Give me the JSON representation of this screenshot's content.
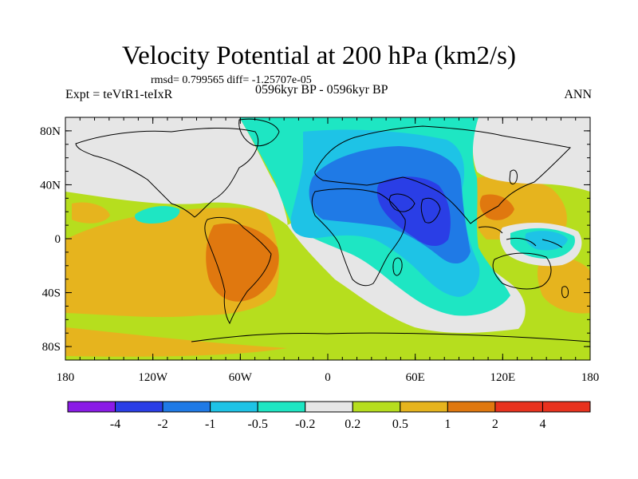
{
  "title": "Velocity Potential at 200 hPa (km2/s)",
  "stats_line": "rmsd= 0.799565  diff= -1.25707e-05",
  "left_label": "Expt = teVtR1-teIxR",
  "center_label": "0596kyr BP - 0596kyr BP",
  "right_label": "ANN",
  "lat_labels": [
    "80N",
    "40N",
    "0",
    "40S",
    "80S"
  ],
  "lon_labels": [
    "180",
    "120W",
    "60W",
    "0",
    "60E",
    "120E",
    "180"
  ],
  "colorbar": {
    "labels": [
      "-4",
      "-2",
      "-1",
      "-0.5",
      "-0.2",
      "0.2",
      "0.5",
      "1",
      "2",
      "4"
    ],
    "colors": [
      "#8a1be6",
      "#2a3ee6",
      "#1f7ae6",
      "#1ec3e6",
      "#1ee6c3",
      "#e6e6e6",
      "#b6de1e",
      "#e6b41e",
      "#e0780f",
      "#e8321e"
    ]
  },
  "palette": {
    "neutral": "#e6e6e6",
    "weak_pos": "#b6de1e",
    "mod_pos": "#e6b41e",
    "strong_pos": "#e0780f",
    "weak_neg": "#1ee6c3",
    "mod_neg": "#1ec3e6",
    "strong_neg": "#1f7ae6",
    "very_strong_neg": "#2a3ee6"
  }
}
